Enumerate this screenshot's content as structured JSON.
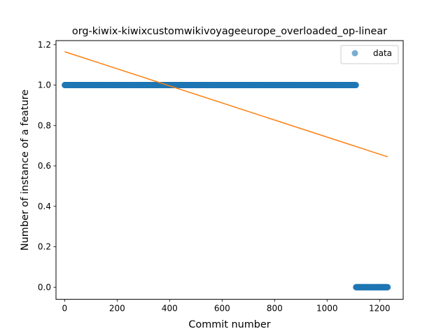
{
  "chart_data": {
    "type": "scatter",
    "title": "org-kiwix-kiwixcustomwikivoyageeurope_overloaded_op-linear",
    "xlabel": "Commit number",
    "ylabel": "Number of instance of a feature",
    "xlim": [
      -33,
      1290
    ],
    "ylim": [
      -0.06,
      1.22
    ],
    "xticks": [
      0,
      200,
      400,
      600,
      800,
      1000,
      1200
    ],
    "yticks": [
      0.0,
      0.2,
      0.4,
      0.6,
      0.8,
      1.0,
      1.2
    ],
    "xtick_labels": [
      "0",
      "200",
      "400",
      "600",
      "800",
      "1000",
      "1200"
    ],
    "ytick_labels": [
      "0.0",
      "0.2",
      "0.4",
      "0.6",
      "0.8",
      "1.0",
      "1.2"
    ],
    "grid": false,
    "legend_position": "top-right",
    "series": [
      {
        "name": "data",
        "kind": "scatter",
        "color": "#1f77b4",
        "segments": [
          {
            "x_start": 0,
            "x_end": 1110,
            "y": 1.0
          },
          {
            "x_start": 1110,
            "x_end": 1231,
            "y": 0.0
          }
        ]
      },
      {
        "kind": "line",
        "color": "#ff7f0e",
        "x": [
          0,
          1231
        ],
        "y": [
          1.165,
          0.645
        ]
      }
    ]
  }
}
